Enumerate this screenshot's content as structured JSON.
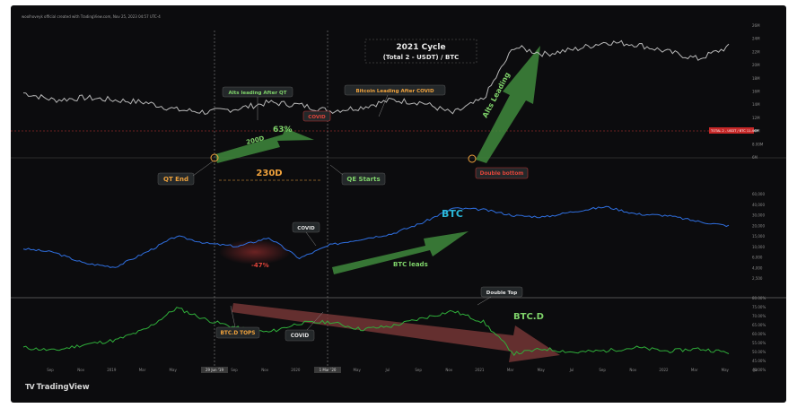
{
  "header": {
    "info": "woolhoveyk official created with TradingView.com, Nov 25, 2023 04:57 UTC-4"
  },
  "brand": {
    "name": "TradingView",
    "logo": "TV"
  },
  "colors": {
    "background": "#0c0c0e",
    "top_line": "#b8b8b8",
    "btc_line": "#2f6fe0",
    "btcd_line": "#2fae3a",
    "arrow_green": "#3f8a3c",
    "arrow_red": "#7a3838",
    "orange": "#f0a23c",
    "green_text": "#7fd36a",
    "red_text": "#e0443a",
    "cyan_text": "#2bb8d8"
  },
  "chart_data": [
    {
      "type": "line",
      "title": "2021 Cycle",
      "subtitle": "(Total 2 - USDT) / BTC",
      "x": [
        "Sep",
        "Nov",
        "2019",
        "Mar",
        "May",
        "Jul",
        "Sep",
        "Nov",
        "2020",
        "Mar",
        "May",
        "Jul",
        "Sep",
        "Nov",
        "2021",
        "Mar",
        "May",
        "Jul",
        "Sep",
        "Nov",
        "2022",
        "Mar",
        "May",
        "Jul"
      ],
      "series": [
        {
          "values": [
            0.5,
            0.44,
            0.46,
            0.44,
            0.42,
            0.36,
            0.34,
            0.37,
            0.42,
            0.4,
            0.35,
            0.38,
            0.44,
            0.42,
            0.33,
            0.45,
            0.88,
            0.82,
            0.86,
            0.92,
            0.9,
            0.84,
            0.78,
            0.88
          ]
        }
      ],
      "y_ticks": [
        "26M",
        "24M",
        "22M",
        "20M",
        "18M",
        "16M",
        "14M",
        "12M",
        "10M",
        "8.00M",
        "6M"
      ],
      "price_label": "TOTAL 2 - USDT / BTC 11.46M"
    },
    {
      "type": "line",
      "series_label": "BTC",
      "x": [
        "Sep",
        "Nov",
        "2019",
        "Mar",
        "May",
        "Jul",
        "Sep",
        "Nov",
        "2020",
        "Mar",
        "May",
        "Jul",
        "Sep",
        "Nov",
        "2021",
        "Mar",
        "May",
        "Jul",
        "Sep",
        "Nov",
        "2022",
        "Mar",
        "May",
        "Jul"
      ],
      "series": [
        {
          "values": [
            0.35,
            0.3,
            0.15,
            0.1,
            0.3,
            0.52,
            0.42,
            0.38,
            0.5,
            0.22,
            0.4,
            0.48,
            0.55,
            0.7,
            0.9,
            0.88,
            0.8,
            0.78,
            0.86,
            0.92,
            0.82,
            0.8,
            0.72,
            0.66
          ]
        }
      ],
      "y_ticks": [
        "60,000",
        "40,000",
        "30,000",
        "20,000",
        "15,000",
        "10,000",
        "6,000",
        "4,000",
        "2,500"
      ]
    },
    {
      "type": "line",
      "series_label": "BTC.D",
      "x": [
        "Sep",
        "Nov",
        "2019",
        "Mar",
        "May",
        "Jul",
        "Sep",
        "Nov",
        "2020",
        "Mar",
        "May",
        "Jul",
        "Sep",
        "Nov",
        "2021",
        "Mar",
        "May",
        "Jul",
        "Sep",
        "Nov",
        "2022",
        "Mar",
        "May",
        "Jul"
      ],
      "series": [
        {
          "values": [
            0.3,
            0.25,
            0.35,
            0.42,
            0.6,
            0.95,
            0.75,
            0.62,
            0.55,
            0.7,
            0.72,
            0.6,
            0.65,
            0.78,
            0.9,
            0.72,
            0.2,
            0.28,
            0.22,
            0.25,
            0.3,
            0.24,
            0.28,
            0.22
          ]
        }
      ],
      "y_ticks": [
        "80.00%",
        "75.00%",
        "70.00%",
        "65.00%",
        "60.00%",
        "55.00%",
        "50.00%",
        "45.00%",
        "40.00%"
      ]
    }
  ],
  "annotations": {
    "cycle_title": "2021 Cycle",
    "cycle_subtitle": "(Total 2 - USDT) / BTC",
    "alts_after_qt": "Alts leading After QT",
    "pct_63": "63%",
    "d200": "200D",
    "covid": "COVID",
    "btc_after_covid": "Bitcoin Leading After COVID",
    "alts_leading": "Alts Leading",
    "qt_end": "QT End",
    "d230": "230D",
    "qe_starts": "QE Starts",
    "double_bottom": "Double bottom",
    "btc": "BTC",
    "btc_leads": "BTC leads",
    "pct_47": "-47%",
    "double_top": "Double Top",
    "btcd": "BTC.D",
    "btcd_tops": "BTC.D TOPS",
    "date1": "29 Jun '19",
    "date2": "1 Mar '20"
  }
}
